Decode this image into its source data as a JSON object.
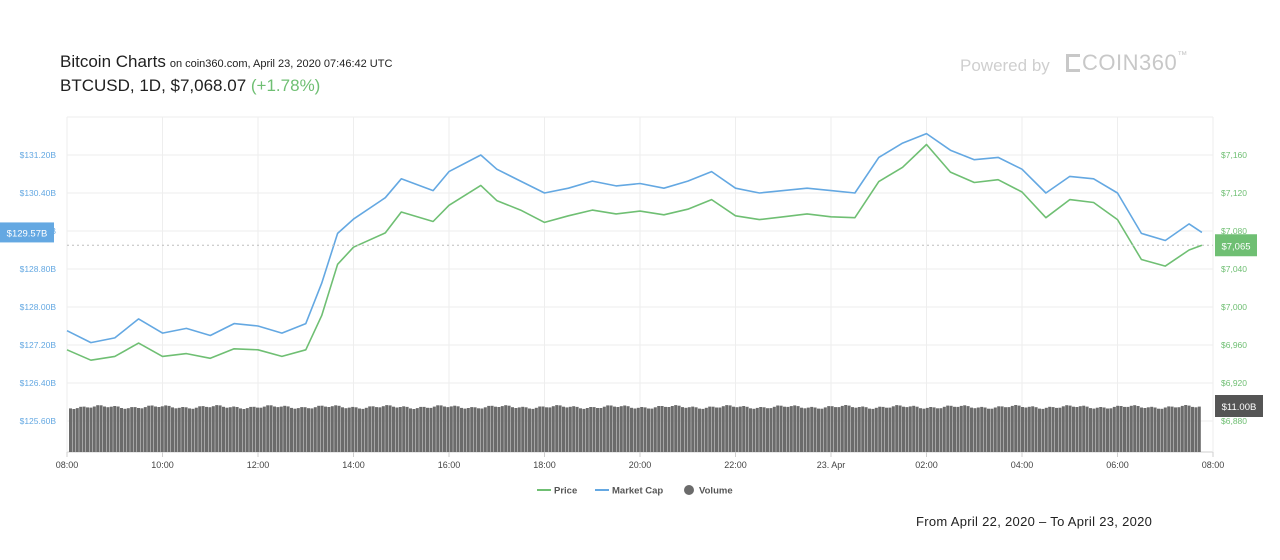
{
  "header": {
    "title": "Bitcoin Charts",
    "source": "on coin360.com, April 23, 2020 07:46:42 UTC",
    "pair": "BTCUSD, 1D, $7,068.07",
    "change": "(+1.78%)"
  },
  "brand": {
    "powered_by": "Powered by",
    "name": "COIN360",
    "tm": "™"
  },
  "footer": {
    "range": "From April 22, 2020 – To April 23, 2020"
  },
  "colors": {
    "price": "#6fbf73",
    "market_cap": "#64a8e2",
    "volume": "#6b6b6b",
    "grid": "#eeeeee"
  },
  "chart_data": {
    "type": "line",
    "x_ticks": [
      "08:00",
      "10:00",
      "12:00",
      "14:00",
      "16:00",
      "18:00",
      "20:00",
      "22:00",
      "23. Apr",
      "02:00",
      "04:00",
      "06:00",
      "08:00"
    ],
    "left_axis": {
      "label": "Market Cap",
      "ticks": [
        "$125.60B",
        "$126.40B",
        "$127.20B",
        "$128.00B",
        "$128.80B",
        "$129.60B",
        "$130.40B",
        "$131.20B"
      ],
      "current_label": "$129.57B"
    },
    "right_axis": {
      "label": "Price",
      "ticks": [
        "$6,880",
        "$6,920",
        "$6,960",
        "$7,000",
        "$7,040",
        "$7,080",
        "$7,120",
        "$7,160"
      ],
      "current_label": "$7,065",
      "volume_label": "$11.00B"
    },
    "legend": [
      "Price",
      "Market Cap",
      "Volume"
    ],
    "series": [
      {
        "name": "Price",
        "x": [
          "08:00",
          "08:30",
          "09:00",
          "09:30",
          "10:00",
          "10:30",
          "11:00",
          "11:30",
          "12:00",
          "12:30",
          "13:00",
          "13:20",
          "13:40",
          "14:00",
          "14:40",
          "15:00",
          "15:40",
          "16:00",
          "16:40",
          "17:00",
          "17:30",
          "18:00",
          "18:30",
          "19:00",
          "19:30",
          "20:00",
          "20:30",
          "21:00",
          "21:30",
          "22:00",
          "22:30",
          "23:00",
          "23:30",
          "00:00",
          "00:30",
          "01:00",
          "01:30",
          "02:00",
          "02:30",
          "03:00",
          "03:30",
          "04:00",
          "04:30",
          "05:00",
          "05:30",
          "06:00",
          "06:30",
          "07:00",
          "07:30",
          "07:46"
        ],
        "values": [
          6955,
          6944,
          6948,
          6962,
          6948,
          6951,
          6946,
          6956,
          6955,
          6948,
          6955,
          6991,
          7045,
          7063,
          7078,
          7100,
          7090,
          7107,
          7128,
          7112,
          7102,
          7089,
          7096,
          7102,
          7098,
          7101,
          7097,
          7103,
          7113,
          7096,
          7092,
          7095,
          7098,
          7095,
          7094,
          7132,
          7147,
          7171,
          7142,
          7131,
          7134,
          7121,
          7094,
          7113,
          7110,
          7092,
          7050,
          7043,
          7060,
          7065
        ]
      },
      {
        "name": "Market Cap",
        "x": [
          "08:00",
          "08:30",
          "09:00",
          "09:30",
          "10:00",
          "10:30",
          "11:00",
          "11:30",
          "12:00",
          "12:30",
          "13:00",
          "13:20",
          "13:40",
          "14:00",
          "14:40",
          "15:00",
          "15:40",
          "16:00",
          "16:40",
          "17:00",
          "17:30",
          "18:00",
          "18:30",
          "19:00",
          "19:30",
          "20:00",
          "20:30",
          "21:00",
          "21:30",
          "22:00",
          "22:30",
          "23:00",
          "23:30",
          "00:00",
          "00:30",
          "01:00",
          "01:30",
          "02:00",
          "02:30",
          "03:00",
          "03:30",
          "04:00",
          "04:30",
          "05:00",
          "05:30",
          "06:00",
          "06:30",
          "07:00",
          "07:30",
          "07:46"
        ],
        "values": [
          127.5,
          127.25,
          127.35,
          127.75,
          127.45,
          127.55,
          127.4,
          127.65,
          127.6,
          127.45,
          127.65,
          128.5,
          129.55,
          129.85,
          130.3,
          130.7,
          130.45,
          130.85,
          131.2,
          130.9,
          130.65,
          130.4,
          130.5,
          130.65,
          130.55,
          130.6,
          130.5,
          130.65,
          130.85,
          130.5,
          130.4,
          130.45,
          130.5,
          130.45,
          130.4,
          131.15,
          131.45,
          131.65,
          131.3,
          131.1,
          131.15,
          130.9,
          130.4,
          130.75,
          130.7,
          130.4,
          129.55,
          129.4,
          129.75,
          129.57
        ]
      }
    ],
    "volume": {
      "name": "Volume",
      "value_label": "$11.00B"
    },
    "current_lines": {
      "market_cap": 129.57,
      "price": 7065
    },
    "legend_position": "bottom-center"
  }
}
